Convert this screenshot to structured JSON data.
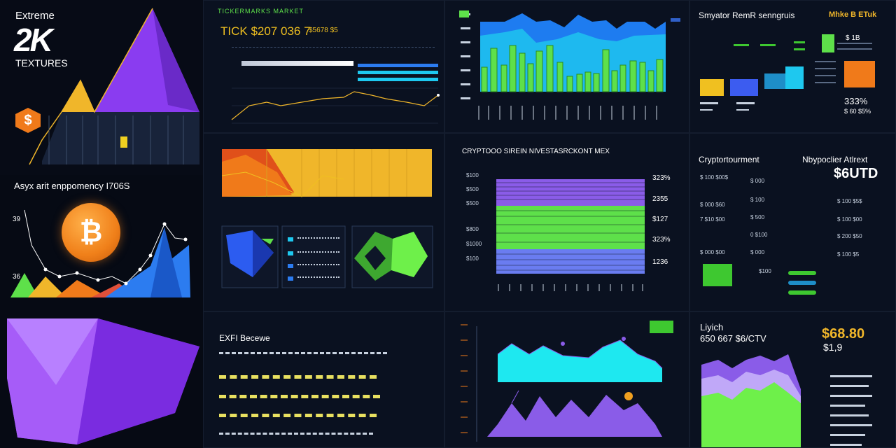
{
  "branding": {
    "line1": "Extreme",
    "line2": "2K",
    "line3": "TEXTURES"
  },
  "left_panel": {
    "subtitle": "Asyx arit enppomency I706S",
    "val_top": "39",
    "val_mid": "36",
    "dollar_icon": "dollar-badge-icon",
    "bitcoin_icon": "bitcoin-coin-icon"
  },
  "ticker_panel": {
    "header": "TICKERMARKS MARKET",
    "price_line": "TICK $207 036 7",
    "price_suffix": "$5678 $5"
  },
  "crypto_invest_panel": {
    "title": "CRYPTOOO SIREIN NIVESTASRCKONT MEX",
    "right_values": [
      "323%",
      "2355",
      "$127",
      "323%",
      "1236"
    ],
    "left_values": [
      "$100",
      "$500",
      "$500",
      "$800",
      "$1000",
      "$100"
    ]
  },
  "exit_panel": {
    "title": "EXFI Becewe"
  },
  "top_right": {
    "title": "Smyator RemR senngruis",
    "subtitle": "Mhke B ETuk",
    "badge": "$ 1B",
    "value": "333%",
    "value_sub": "$ 60 $5%"
  },
  "crypto_table": {
    "title_left": "Cryptortourment",
    "title_right": "Nbypoclier Atlrext",
    "big_value": "$6UTD",
    "rows_left": [
      "$ 100 $00$",
      "$ 000 $60",
      "7 $10 $00",
      "$ 000 $00"
    ],
    "rows_mid": [
      "$ 000",
      "$ 100",
      "$ 500",
      "0 $100",
      "$ 000",
      "$100"
    ],
    "rows_right": [
      "$ 100 $5$",
      "$ 100 $00",
      "$ 200 $50",
      "$ 100 $5"
    ]
  },
  "bottom_right": {
    "label": "Liyich",
    "sub": "650 667 $6/CTV",
    "value": "$68.80",
    "value_sub": "$1,9"
  },
  "colors": {
    "purple": "#8a3cf0",
    "green": "#5ee04a",
    "cyan": "#1ec8ef",
    "gold": "#f0b62a",
    "orange": "#f07a1a",
    "blue": "#2c7cf0"
  }
}
